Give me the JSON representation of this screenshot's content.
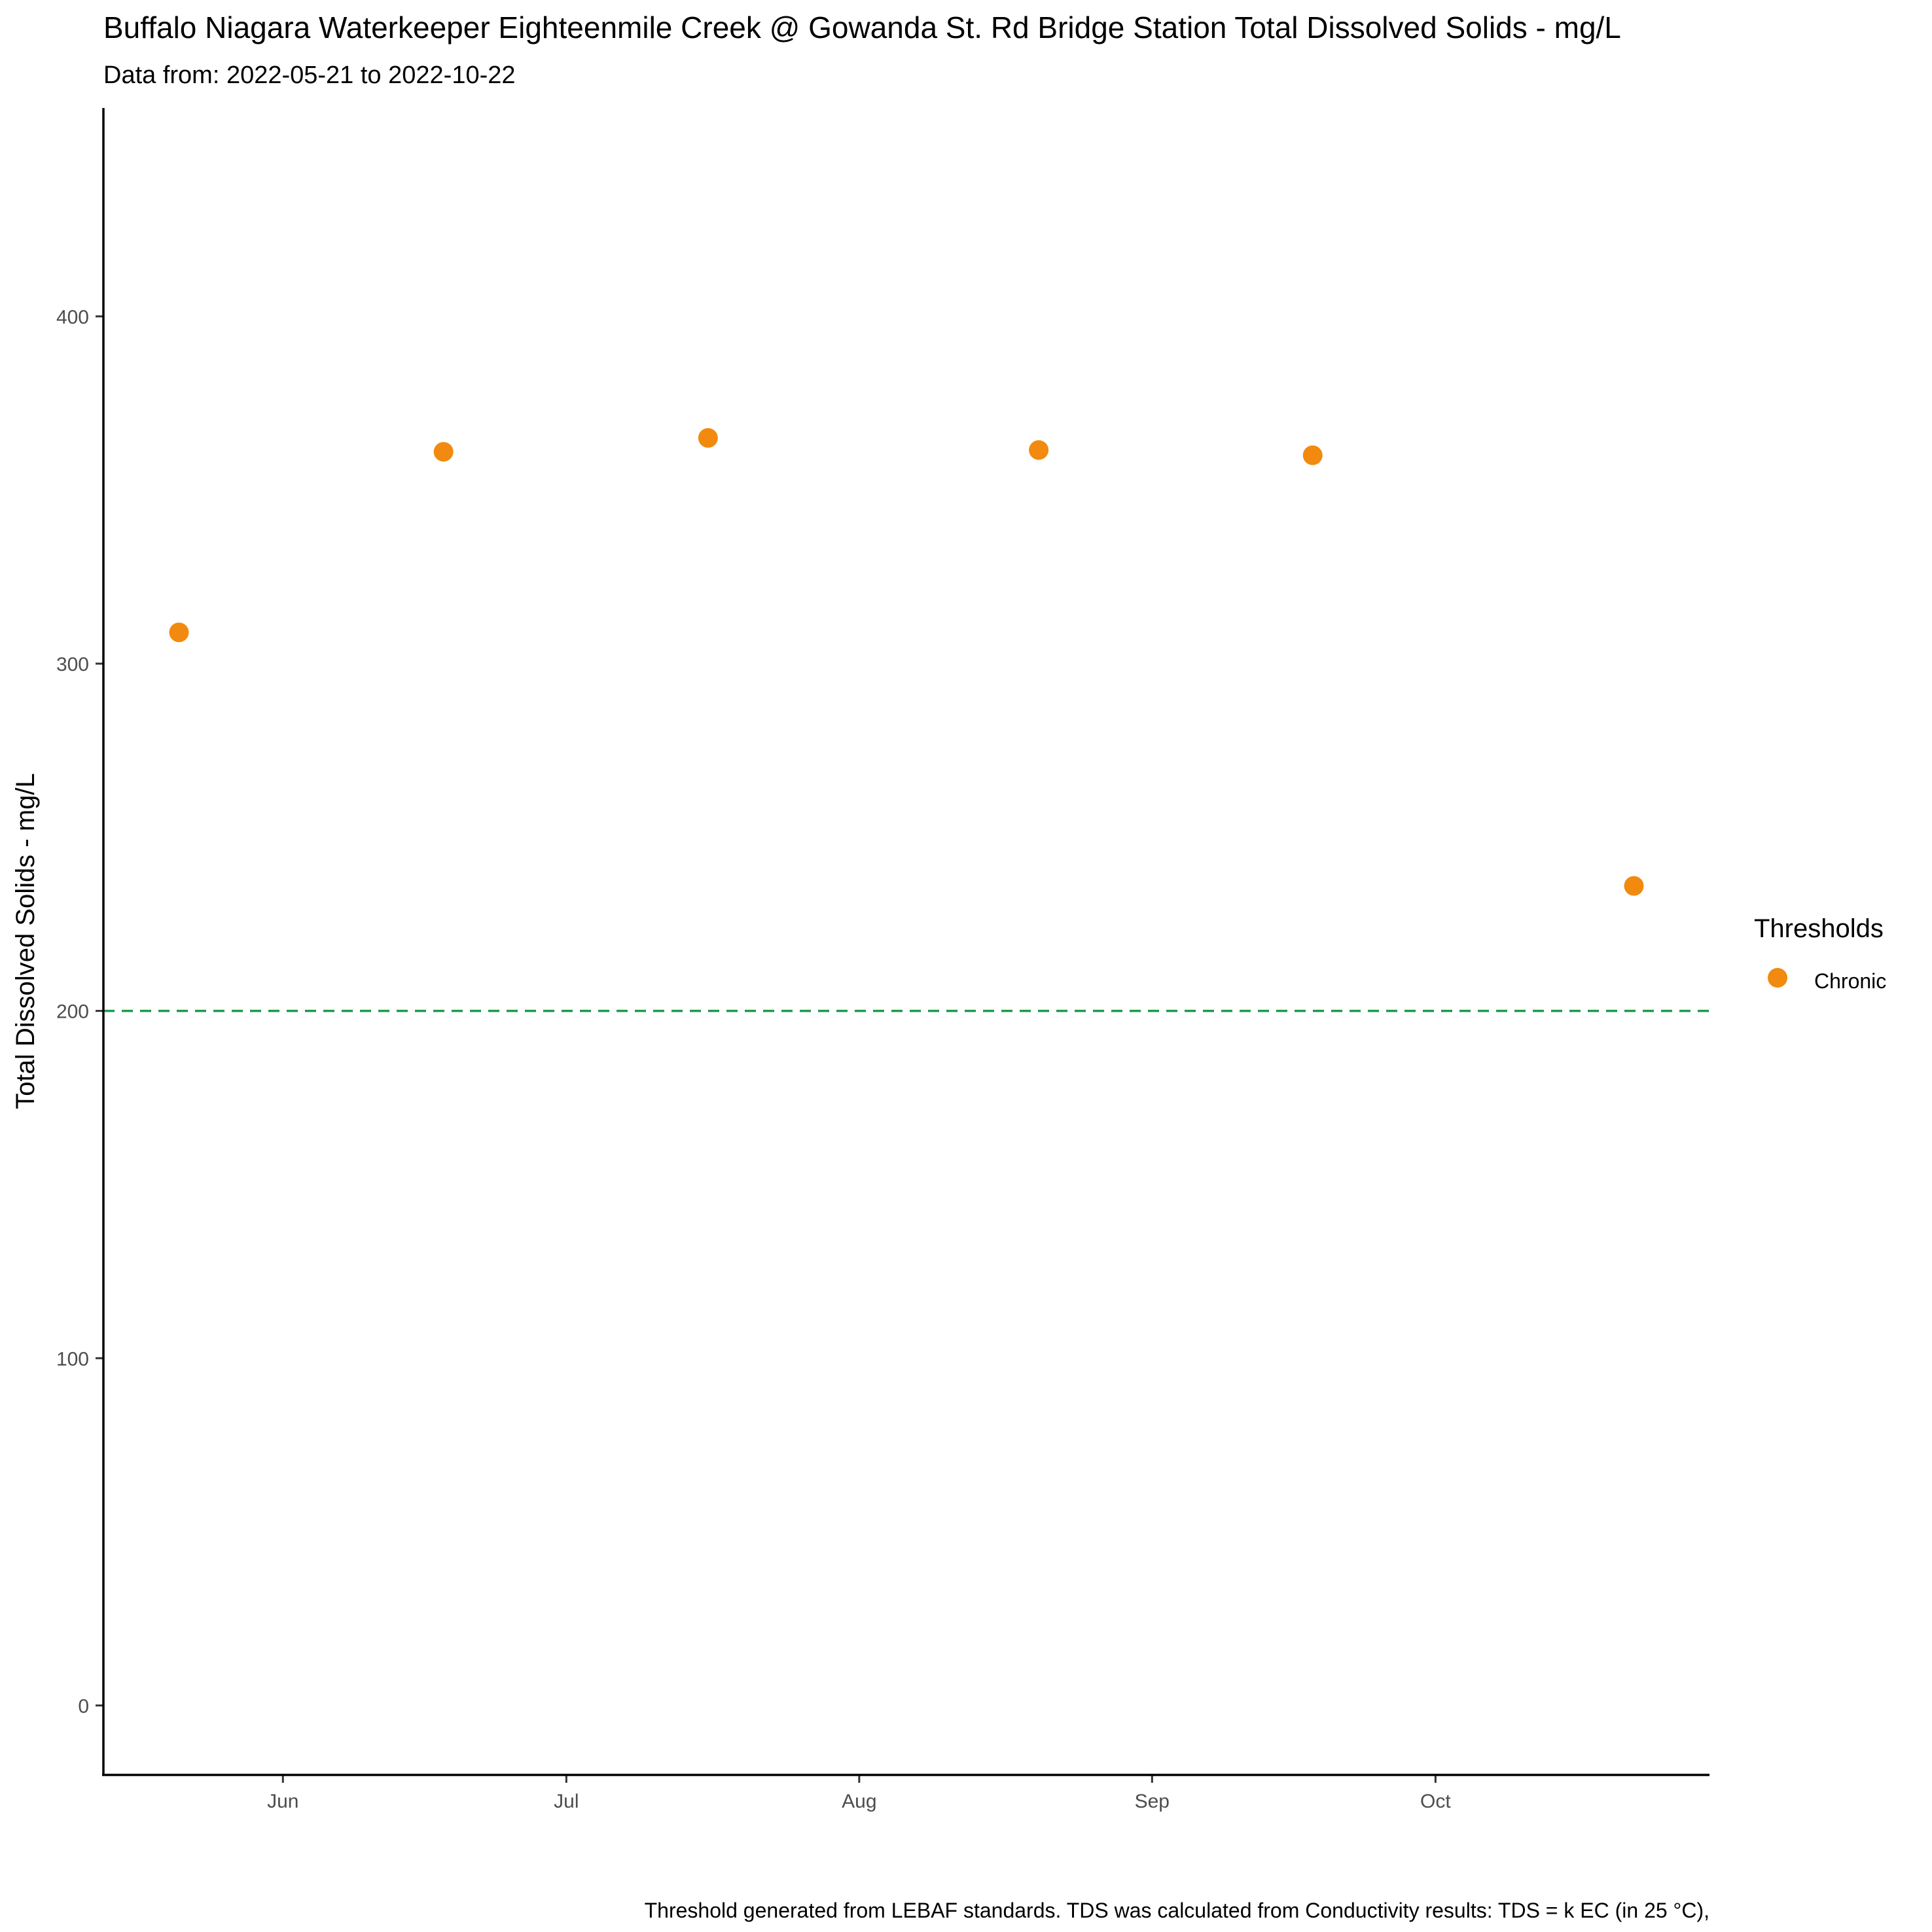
{
  "chart_data": {
    "type": "scatter",
    "title": "Buffalo Niagara Waterkeeper Eighteenmile Creek @ Gowanda St. Rd Bridge Station Total Dissolved Solids - mg/L",
    "subtitle": "Data from: 2022-05-21 to 2022-10-22",
    "ylabel": "Total Dissolved Solids - mg/L",
    "xlabel": "",
    "caption": "Threshold generated from LEBAF standards. TDS was calculated from Conductivity results: TDS = k EC (in 25 °C),",
    "x_ticks": [
      {
        "label": "Jun",
        "date": "2022-06-01"
      },
      {
        "label": "Jul",
        "date": "2022-07-01"
      },
      {
        "label": "Aug",
        "date": "2022-08-01"
      },
      {
        "label": "Sep",
        "date": "2022-09-01"
      },
      {
        "label": "Oct",
        "date": "2022-10-01"
      }
    ],
    "y_ticks": [
      0,
      100,
      200,
      300,
      400
    ],
    "xlim": [
      "2022-05-13",
      "2022-10-30"
    ],
    "ylim": [
      -20,
      460
    ],
    "grid": false,
    "legend": {
      "title": "Thresholds",
      "placement": "right"
    },
    "series": [
      {
        "name": "Chronic",
        "color": "#F28A0F",
        "points": [
          {
            "x": "2022-05-21",
            "y": 309
          },
          {
            "x": "2022-06-18",
            "y": 361
          },
          {
            "x": "2022-07-16",
            "y": 365
          },
          {
            "x": "2022-08-20",
            "y": 361.5
          },
          {
            "x": "2022-09-18",
            "y": 360
          },
          {
            "x": "2022-10-22",
            "y": 236
          }
        ]
      }
    ],
    "threshold": {
      "y": 200,
      "color": "#1E9B4B",
      "style": "dashed"
    }
  }
}
